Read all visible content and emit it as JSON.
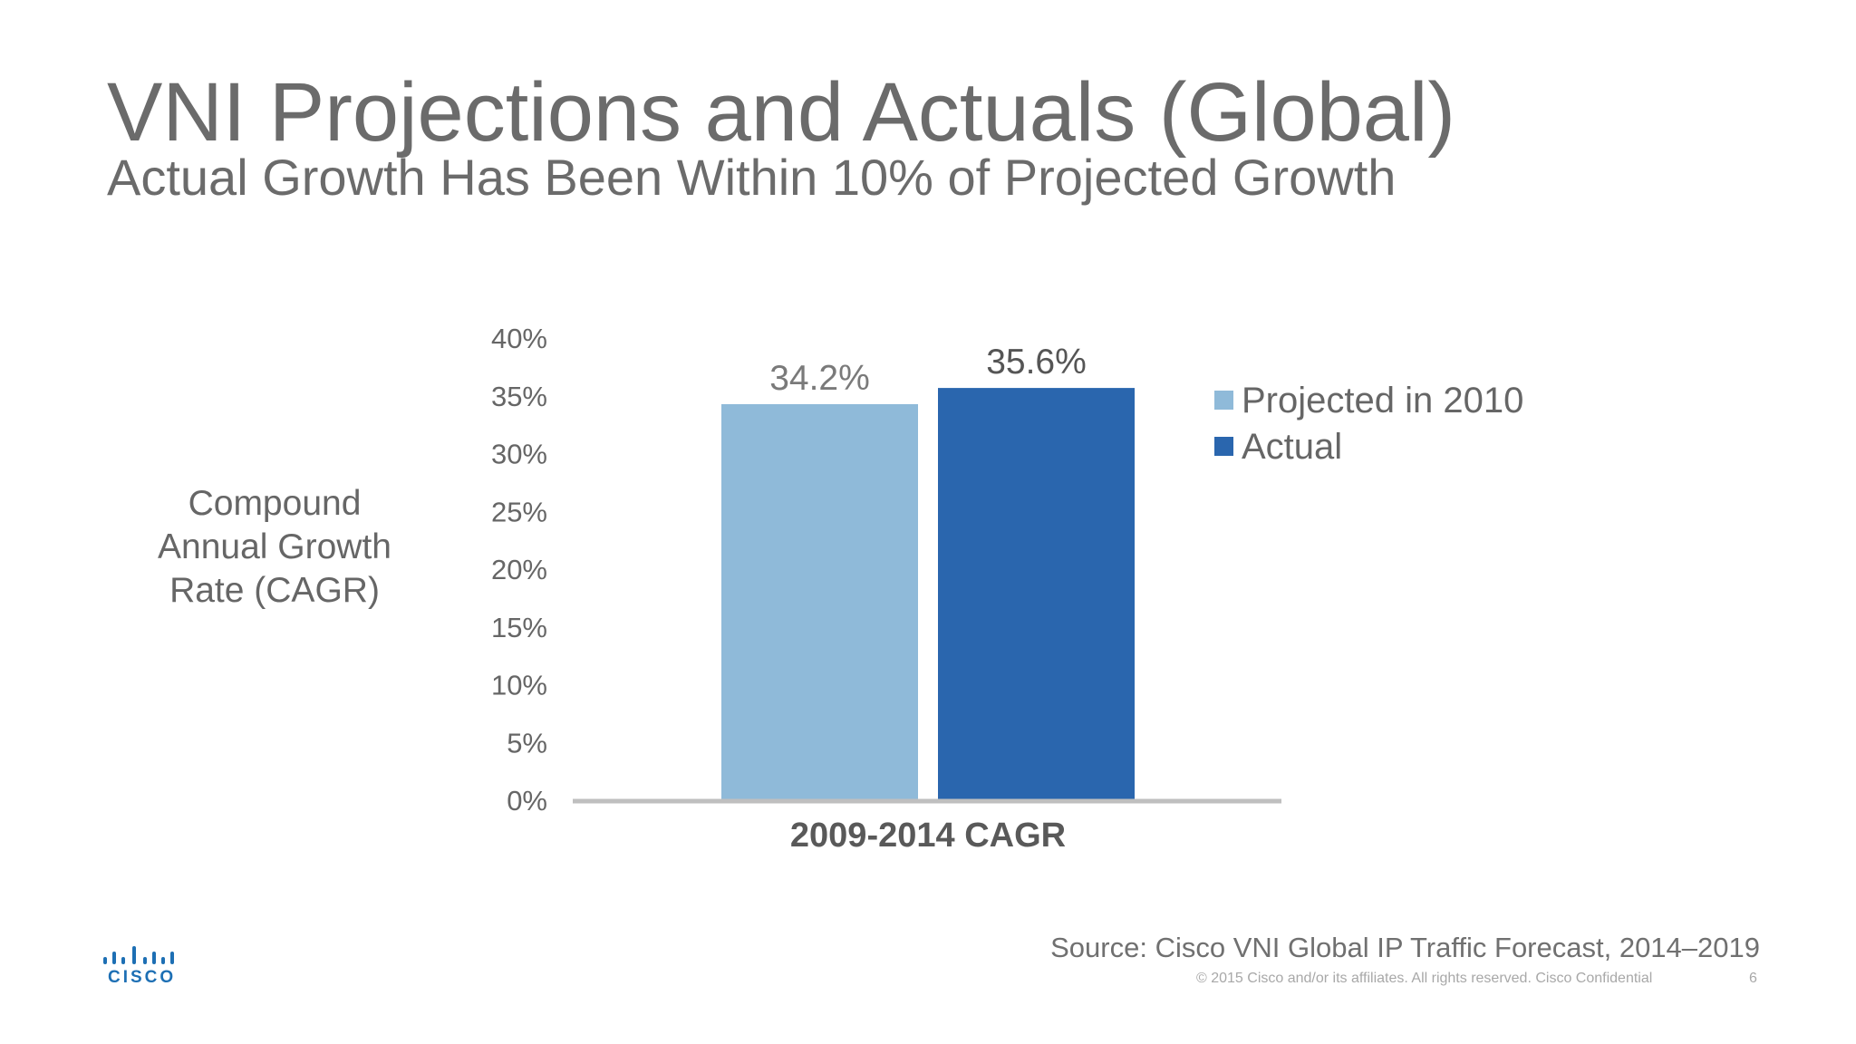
{
  "slide": {
    "title": "VNI Projections and Actuals (Global)",
    "subtitle": "Actual Growth Has Been Within 10% of Projected Growth",
    "source": "Source: Cisco VNI Global IP Traffic Forecast, 2014–2019",
    "copyright": "© 2015  Cisco and/or its affiliates. All rights reserved.   Cisco Confidential",
    "page_number": "6",
    "logo_text": "CISCO"
  },
  "chart_data": {
    "type": "bar",
    "ylabel": "Compound Annual Growth Rate (CAGR)",
    "ylim": [
      0,
      40
    ],
    "yticks": [
      0,
      5,
      10,
      15,
      20,
      25,
      30,
      35,
      40
    ],
    "ytick_labels": [
      "0%",
      "5%",
      "10%",
      "15%",
      "20%",
      "25%",
      "30%",
      "35%",
      "40%"
    ],
    "categories": [
      "2009-2014 CAGR"
    ],
    "series": [
      {
        "name": "Projected in 2010",
        "values": [
          34.2
        ],
        "label": "34.2%",
        "color": "#8fbad9"
      },
      {
        "name": "Actual",
        "values": [
          35.6
        ],
        "label": "35.6%",
        "color": "#2a66ae"
      }
    ],
    "legend_position": "right",
    "grid": false
  }
}
